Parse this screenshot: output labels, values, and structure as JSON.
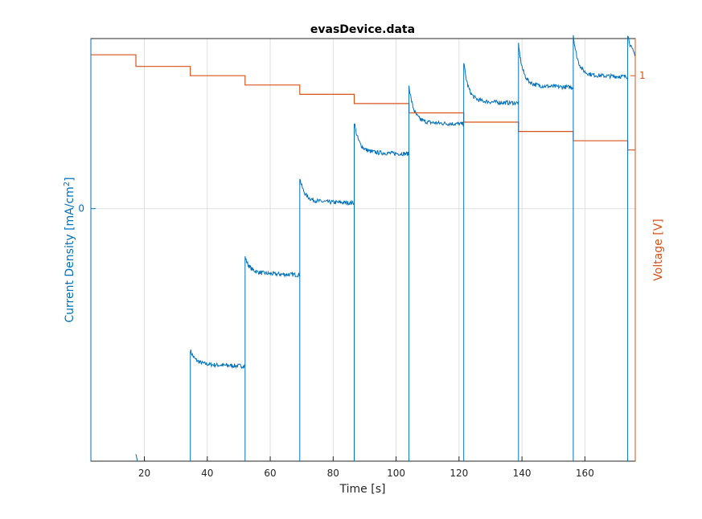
{
  "chart_data": {
    "type": "line",
    "title": "evasDevice.data",
    "xlabel": "Time [s]",
    "ylabel_left": "Current Density [mA/cm",
    "ylabel_left_sup": "2",
    "ylabel_left_end": "]",
    "ylabel_right": "Voltage  [V]",
    "xlim": [
      3,
      176
    ],
    "x_ticks": [
      20,
      40,
      60,
      80,
      100,
      120,
      140,
      160
    ],
    "left_ylim": [
      -0.72,
      0.485
    ],
    "left_y_ticks": [
      0
    ],
    "right_ylim": [
      0.17,
      1.08
    ],
    "right_y_ticks": [
      1
    ],
    "grid": true,
    "colors": {
      "current": "#0072bd",
      "voltage": "#d95319"
    },
    "series": [
      {
        "axis": "left",
        "color": "#0072bd",
        "segments": [
          {
            "t0": 17.3,
            "t1": 17.4,
            "tail": -0.71,
            "peak": -0.7,
            "pts": []
          },
          {
            "t0": 34.6,
            "t1": 52.0,
            "tail": -0.45,
            "peak": -0.415
          },
          {
            "t0": 52.0,
            "t1": 69.4,
            "tail": -0.19,
            "peak": -0.15
          },
          {
            "t0": 69.4,
            "t1": 86.7,
            "tail": 0.015,
            "peak": 0.075
          },
          {
            "t0": 86.7,
            "t1": 104.1,
            "tail": 0.155,
            "peak": 0.235
          },
          {
            "t0": 104.1,
            "t1": 121.5,
            "tail": 0.24,
            "peak": 0.34
          },
          {
            "t0": 121.5,
            "t1": 138.9,
            "tail": 0.3,
            "peak": 0.405
          },
          {
            "t0": 138.9,
            "t1": 156.3,
            "tail": 0.345,
            "peak": 0.455
          },
          {
            "t0": 156.3,
            "t1": 173.6,
            "tail": 0.375,
            "peak": 0.485
          },
          {
            "t0": 173.6,
            "t1": 176.0,
            "tail": 0.42,
            "peak": 0.485
          }
        ]
      },
      {
        "axis": "right",
        "color": "#d95319",
        "steps": [
          {
            "t0": 3.0,
            "t1": 17.3,
            "v": 1.045
          },
          {
            "t0": 17.3,
            "t1": 34.6,
            "v": 1.02
          },
          {
            "t0": 34.6,
            "t1": 52.0,
            "v": 1.0
          },
          {
            "t0": 52.0,
            "t1": 69.4,
            "v": 0.98
          },
          {
            "t0": 69.4,
            "t1": 86.7,
            "v": 0.96
          },
          {
            "t0": 86.7,
            "t1": 104.1,
            "v": 0.94
          },
          {
            "t0": 104.1,
            "t1": 121.5,
            "v": 0.92
          },
          {
            "t0": 121.5,
            "t1": 138.9,
            "v": 0.9
          },
          {
            "t0": 138.9,
            "t1": 156.3,
            "v": 0.88
          },
          {
            "t0": 156.3,
            "t1": 173.6,
            "v": 0.86
          },
          {
            "t0": 173.6,
            "t1": 176.0,
            "v": 0.84
          }
        ]
      }
    ]
  }
}
